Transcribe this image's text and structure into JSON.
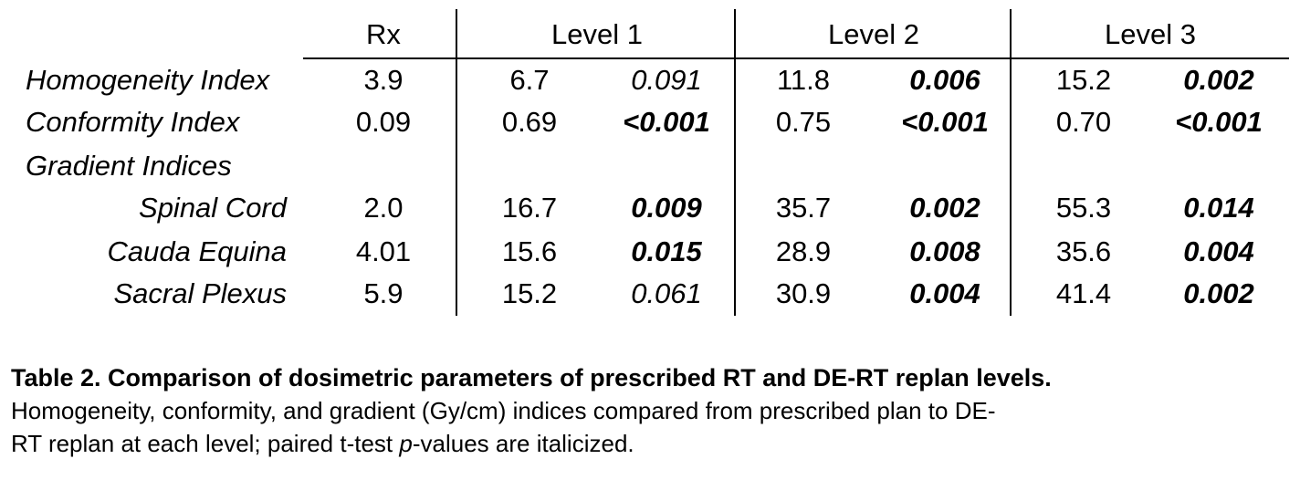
{
  "table": {
    "headers": {
      "rx": "Rx",
      "level1": "Level 1",
      "level2": "Level 2",
      "level3": "Level 3"
    },
    "rows": [
      {
        "label": "Homogeneity Index",
        "rx": "3.9",
        "l1": "6.7",
        "p1": "0.091",
        "l2": "11.8",
        "p2": "0.006",
        "l3": "15.2",
        "p3": "0.002"
      },
      {
        "label": "Conformity Index",
        "rx": "0.09",
        "l1": "0.69",
        "p1": "<0.001",
        "l2": "0.75",
        "p2": "<0.001",
        "l3": "0.70",
        "p3": "<0.001"
      },
      {
        "label": "Gradient Indices"
      },
      {
        "label": "Spinal Cord",
        "rx": "2.0",
        "l1": "16.7",
        "p1": "0.009",
        "l2": "35.7",
        "p2": "0.002",
        "l3": "55.3",
        "p3": "0.014"
      },
      {
        "label": "Cauda Equina",
        "rx": "4.01",
        "l1": "15.6",
        "p1": "0.015",
        "l2": "28.9",
        "p2": "0.008",
        "l3": "35.6",
        "p3": "0.004"
      },
      {
        "label": "Sacral Plexus",
        "rx": "5.9",
        "l1": "15.2",
        "p1": "0.061",
        "l2": "30.9",
        "p2": "0.004",
        "l3": "41.4",
        "p3": "0.002"
      }
    ]
  },
  "caption": {
    "title": "Table 2. Comparison of dosimetric parameters of prescribed RT and DE-RT replan levels.",
    "body_part1": "Homogeneity, conformity, and gradient (Gy/cm) indices compared from prescribed plan to DE-",
    "body_part2": "RT replan at each level; paired t-test ",
    "body_italic": "p",
    "body_part3": "-values are italicized."
  }
}
